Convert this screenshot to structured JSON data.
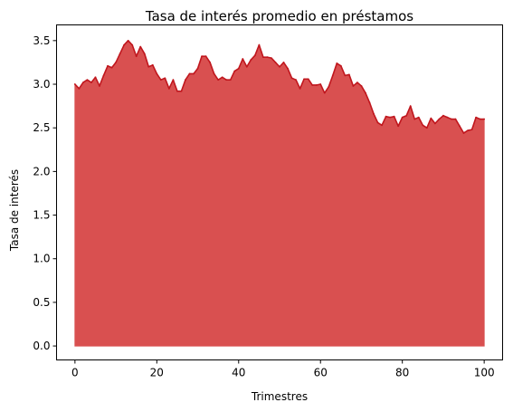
{
  "chart_data": {
    "type": "area",
    "title": "Tasa de interés promedio en préstamos",
    "xlabel": "Trimestres",
    "ylabel": "Tasa de interés",
    "xlim": [
      -4.5,
      104.5
    ],
    "ylim": [
      -0.16,
      3.68
    ],
    "xticks": [
      0,
      20,
      40,
      60,
      80,
      100
    ],
    "xtick_labels": [
      "0",
      "20",
      "40",
      "60",
      "80",
      "100"
    ],
    "yticks": [
      0.0,
      0.5,
      1.0,
      1.5,
      2.0,
      2.5,
      3.0,
      3.5
    ],
    "ytick_labels": [
      "0.0",
      "0.5",
      "1.0",
      "1.5",
      "2.0",
      "2.5",
      "3.0",
      "3.5"
    ],
    "grid": false,
    "legend": "none",
    "fill_color": "#d95050",
    "line_color": "#c0171e",
    "x": [
      0,
      1,
      2,
      3,
      4,
      5,
      6,
      7,
      8,
      9,
      10,
      11,
      12,
      13,
      14,
      15,
      16,
      17,
      18,
      19,
      20,
      21,
      22,
      23,
      24,
      25,
      26,
      27,
      28,
      29,
      30,
      31,
      32,
      33,
      34,
      35,
      36,
      37,
      38,
      39,
      40,
      41,
      42,
      43,
      44,
      45,
      46,
      47,
      48,
      49,
      50,
      51,
      52,
      53,
      54,
      55,
      56,
      57,
      58,
      59,
      60,
      61,
      62,
      63,
      64,
      65,
      66,
      67,
      68,
      69,
      70,
      71,
      72,
      73,
      74,
      75,
      76,
      77,
      78,
      79,
      80,
      81,
      82,
      83,
      84,
      85,
      86,
      87,
      88,
      89,
      90,
      91,
      92,
      93,
      94,
      95,
      96,
      97,
      98,
      99,
      100
    ],
    "values": [
      3.0,
      2.95,
      3.02,
      3.05,
      3.02,
      3.08,
      2.98,
      3.1,
      3.21,
      3.19,
      3.25,
      3.35,
      3.45,
      3.5,
      3.45,
      3.32,
      3.43,
      3.35,
      3.2,
      3.22,
      3.12,
      3.05,
      3.07,
      2.95,
      3.05,
      2.92,
      2.92,
      3.05,
      3.12,
      3.12,
      3.18,
      3.32,
      3.32,
      3.25,
      3.12,
      3.05,
      3.08,
      3.05,
      3.05,
      3.15,
      3.18,
      3.29,
      3.2,
      3.28,
      3.33,
      3.45,
      3.31,
      3.31,
      3.3,
      3.25,
      3.2,
      3.25,
      3.18,
      3.07,
      3.05,
      2.95,
      3.06,
      3.06,
      2.99,
      2.99,
      3.0,
      2.9,
      2.97,
      3.1,
      3.24,
      3.21,
      3.1,
      3.11,
      2.98,
      3.02,
      2.98,
      2.9,
      2.79,
      2.66,
      2.56,
      2.53,
      2.63,
      2.62,
      2.63,
      2.52,
      2.62,
      2.64,
      2.75,
      2.6,
      2.62,
      2.53,
      2.5,
      2.61,
      2.55,
      2.6,
      2.64,
      2.62,
      2.6,
      2.6,
      2.52,
      2.44,
      2.47,
      2.48,
      2.62,
      2.6,
      2.6
    ]
  }
}
